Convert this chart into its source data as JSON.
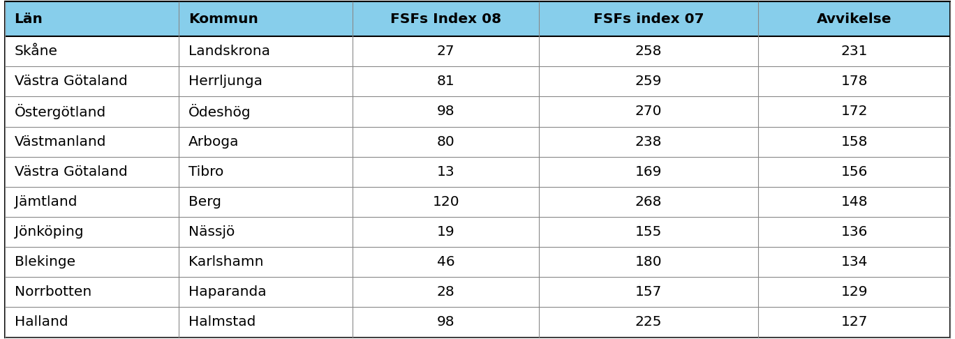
{
  "headers": [
    "Län",
    "Kommun",
    "FSFs Index 08",
    "FSFs index 07",
    "Avvikelse"
  ],
  "rows": [
    [
      "Skåne",
      "Landskrona",
      "27",
      "258",
      "231"
    ],
    [
      "Västra Götaland",
      "Herrljunga",
      "81",
      "259",
      "178"
    ],
    [
      "Östergötland",
      "Ödeshög",
      "98",
      "270",
      "172"
    ],
    [
      "Västmanland",
      "Arboga",
      "80",
      "238",
      "158"
    ],
    [
      "Västra Götaland",
      "Tibro",
      "13",
      "169",
      "156"
    ],
    [
      "Jämtland",
      "Berg",
      "120",
      "268",
      "148"
    ],
    [
      "Jönköping",
      "Nässjö",
      "19",
      "155",
      "136"
    ],
    [
      "Blekinge",
      "Karlshamn",
      "46",
      "180",
      "134"
    ],
    [
      "Norrbotten",
      "Haparanda",
      "28",
      "157",
      "129"
    ],
    [
      "Halland",
      "Halmstad",
      "98",
      "225",
      "127"
    ]
  ],
  "header_bg": "#87CEEB",
  "row_bg_white": "#FFFFFF",
  "row_bg_light": "#FFFFFF",
  "header_text_color": "#000000",
  "row_text_color": "#000000",
  "col_aligns": [
    "left",
    "left",
    "center",
    "center",
    "center"
  ],
  "figsize": [
    13.68,
    4.86
  ],
  "dpi": 100,
  "header_fontsize": 14.5,
  "row_fontsize": 14.5,
  "border_color": "#888888",
  "header_line_color": "#000000"
}
